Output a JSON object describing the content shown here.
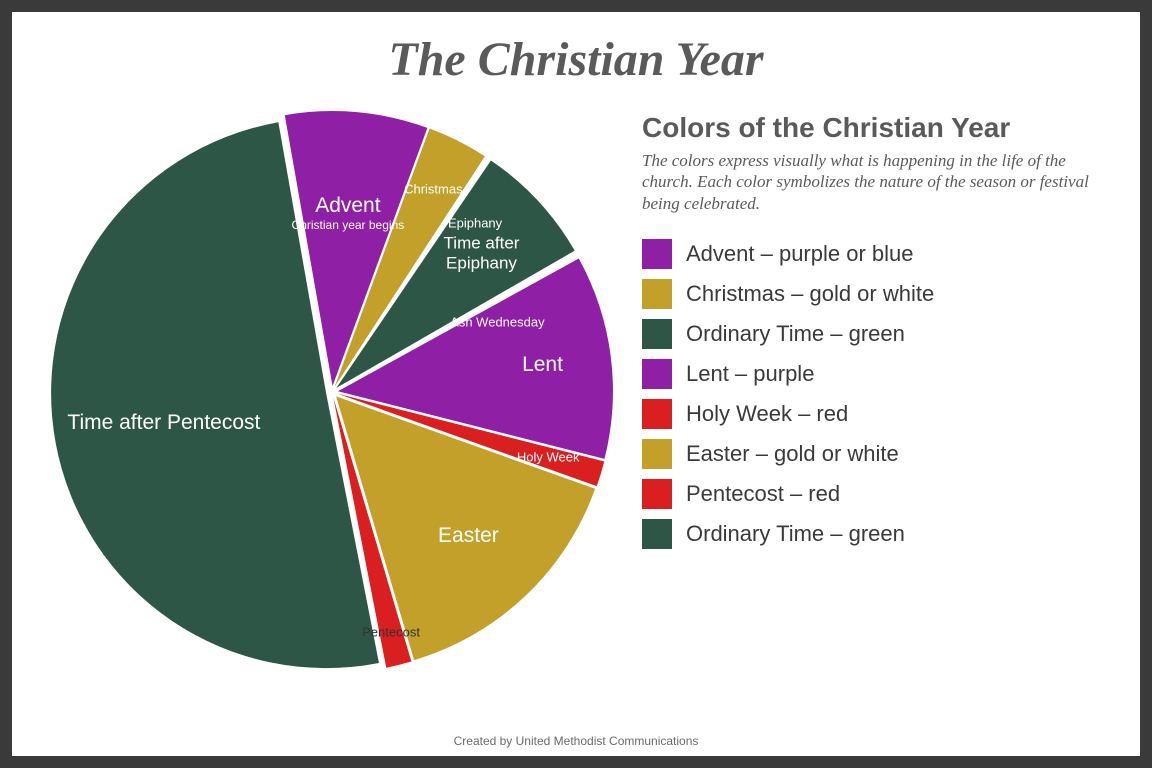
{
  "title": "The Christian Year",
  "credit": "Created by United Methodist Communications",
  "chart": {
    "type": "pie",
    "background": "#ffffff",
    "start_angle_deg": -10,
    "explode": 6,
    "radius": 275,
    "slices": [
      {
        "name": "Advent",
        "sub": "Christian year begins",
        "value": 28,
        "color": "#8f1fa4",
        "label_size": "main",
        "label_r": 0.63
      },
      {
        "name": "Christmas",
        "sub": "",
        "value": 12,
        "color": "#c2a029",
        "label_size": "small",
        "label_r": 0.8
      },
      {
        "name": "Epiphany",
        "sub": "",
        "value": 1,
        "color": "#ffffff",
        "label_size": "small",
        "label_r": 0.78,
        "label_offset_deg": 7
      },
      {
        "name": "Time after Epiphany",
        "sub": "",
        "value": 24,
        "color": "#2e5646",
        "label_size": "mid",
        "label_r": 0.72
      },
      {
        "name": "Ash Wednesday",
        "sub": "",
        "value": 1,
        "color": "#ffffff",
        "label_size": "small",
        "label_r": 0.63,
        "label_offset_deg": 7
      },
      {
        "name": "Lent",
        "sub": "",
        "value": 40,
        "color": "#8f1fa4",
        "label_size": "main",
        "label_r": 0.75
      },
      {
        "name": "Holy Week",
        "sub": "",
        "value": 5,
        "color": "#d91f1f",
        "label_size": "small",
        "label_r": 0.8
      },
      {
        "name": "Easter",
        "sub": "",
        "value": 50,
        "color": "#c2a029",
        "label_size": "main",
        "label_r": 0.7
      },
      {
        "name": "Pentecost",
        "sub": "",
        "value": 5,
        "color": "#d91f1f",
        "label_size": "small",
        "label_r": 0.88,
        "label_color": "#333333"
      },
      {
        "name": "Time after Pentecost",
        "sub": "",
        "value": 168,
        "color": "#2e5646",
        "label_size": "main",
        "label_r": 0.6
      }
    ]
  },
  "legend": {
    "title": "Colors of the Christian Year",
    "description": "The colors express visually what is happening in the life of the church. Each color symbolizes the nature of the season or festival being celebrated.",
    "items": [
      {
        "label": "Advent – purple or blue",
        "color": "#8f1fa4"
      },
      {
        "label": "Christmas – gold or white",
        "color": "#c2a029"
      },
      {
        "label": "Ordinary Time – green",
        "color": "#2e5646"
      },
      {
        "label": "Lent – purple",
        "color": "#8f1fa4"
      },
      {
        "label": "Holy Week – red",
        "color": "#d91f1f"
      },
      {
        "label": "Easter – gold or white",
        "color": "#c2a029"
      },
      {
        "label": "Pentecost – red",
        "color": "#d91f1f"
      },
      {
        "label": "Ordinary Time – green",
        "color": "#2e5646"
      }
    ]
  }
}
